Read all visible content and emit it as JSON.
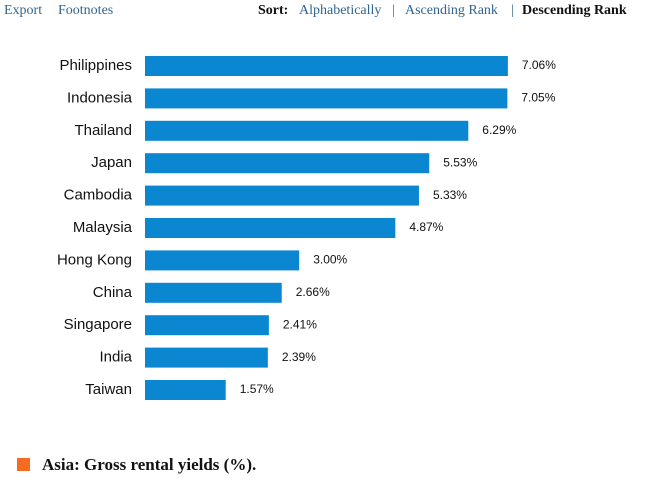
{
  "toolbar": {
    "links": [
      "Export",
      "Footnotes"
    ],
    "sort_label": "Sort:",
    "sort_options": [
      "Alphabetically",
      "Ascending Rank",
      "Descending Rank"
    ],
    "separator": "|"
  },
  "chart_data": {
    "type": "bar",
    "orientation": "horizontal",
    "title": "Asia: Gross rental yields (%).",
    "categories": [
      "Philippines",
      "Indonesia",
      "Thailand",
      "Japan",
      "Cambodia",
      "Malaysia",
      "Hong Kong",
      "China",
      "Singapore",
      "India",
      "Taiwan"
    ],
    "values": [
      7.06,
      7.05,
      6.29,
      5.53,
      5.33,
      4.87,
      3.0,
      2.66,
      2.41,
      2.39,
      1.57
    ],
    "value_labels": [
      "7.06%",
      "7.05%",
      "6.29%",
      "5.53%",
      "5.33%",
      "4.87%",
      "3.00%",
      "2.66%",
      "2.41%",
      "2.39%",
      "1.57%"
    ],
    "color": "#0a87d0",
    "legend_color": "#f36c21"
  }
}
